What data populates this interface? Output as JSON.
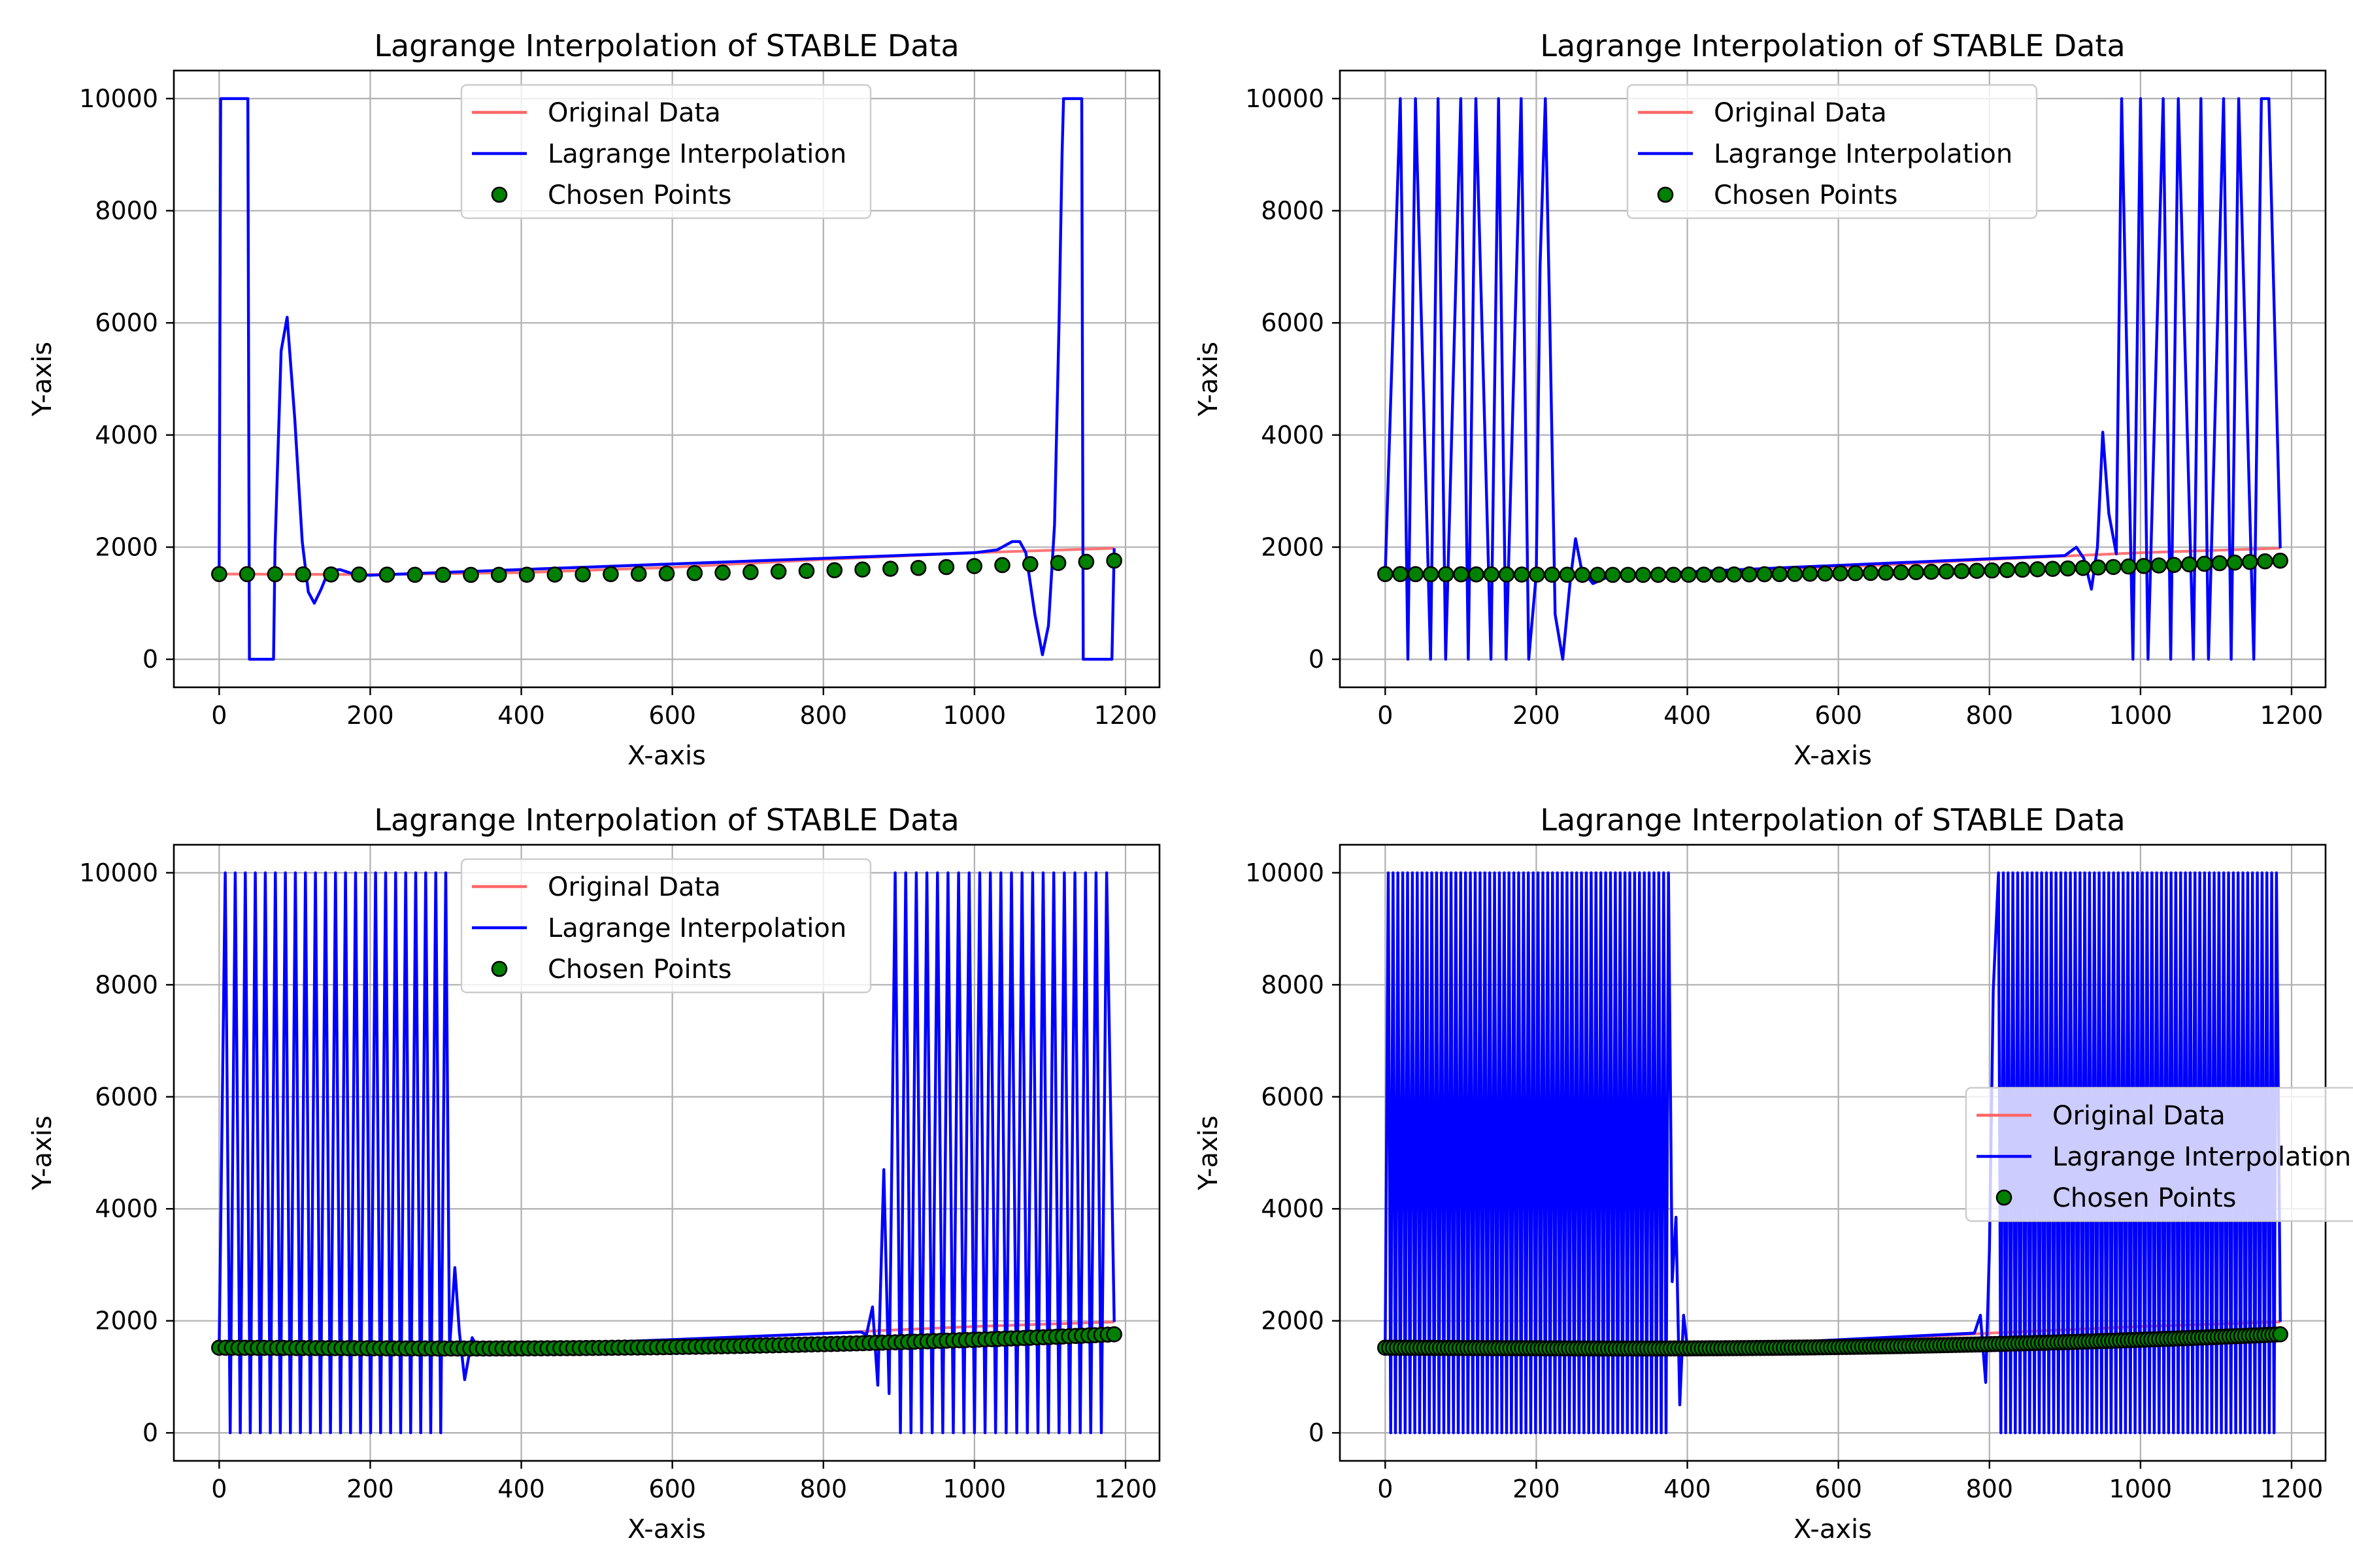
{
  "chart_data": [
    {
      "type": "line",
      "title": "Lagrange Interpolation of STABLE Data",
      "xlabel": "X-axis",
      "ylabel": "Y-axis",
      "xlim": [
        -60,
        1245
      ],
      "ylim": [
        -500,
        10500
      ],
      "xticks": [
        0,
        200,
        400,
        600,
        800,
        1000,
        1200
      ],
      "yticks": [
        0,
        2000,
        4000,
        6000,
        8000,
        10000
      ],
      "grid": true,
      "legend_position": "upper-center",
      "points_count": 33,
      "series": [
        {
          "name": "Original Data",
          "color": "#ff6666",
          "x": [
            0,
            200,
            400,
            600,
            800,
            1000,
            1185
          ],
          "y": [
            1520,
            1510,
            1545,
            1640,
            1780,
            1900,
            1980
          ]
        },
        {
          "name": "Lagrange Interpolation",
          "color": "#0000ff",
          "x": [
            0,
            2,
            4,
            36,
            38,
            40,
            70,
            72,
            74,
            82,
            90,
            100,
            110,
            118,
            126,
            135,
            145,
            160,
            180,
            200,
            1000,
            1030,
            1050,
            1060,
            1068,
            1080,
            1090,
            1098,
            1106,
            1112,
            1116,
            1118,
            1120,
            1140,
            1142,
            1144,
            1180,
            1182,
            1185
          ],
          "y": [
            1520,
            10000,
            10000,
            10000,
            10000,
            0,
            0,
            0,
            2000,
            5500,
            6100,
            4300,
            2100,
            1200,
            1000,
            1250,
            1580,
            1600,
            1510,
            1500,
            1900,
            1950,
            2100,
            2100,
            1900,
            800,
            80,
            600,
            2400,
            6000,
            9000,
            10000,
            10000,
            10000,
            10000,
            0,
            0,
            0,
            1980
          ]
        },
        {
          "name": "Chosen Points",
          "color": "#008000",
          "type": "scatter"
        }
      ]
    },
    {
      "type": "line",
      "title": "Lagrange Interpolation of STABLE Data",
      "xlabel": "X-axis",
      "ylabel": "Y-axis",
      "xlim": [
        -60,
        1245
      ],
      "ylim": [
        -500,
        10500
      ],
      "xticks": [
        0,
        200,
        400,
        600,
        800,
        1000,
        1200
      ],
      "yticks": [
        0,
        2000,
        4000,
        6000,
        8000,
        10000
      ],
      "grid": true,
      "legend_position": "upper-center",
      "points_count": 60,
      "series": [
        {
          "name": "Original Data",
          "color": "#ff6666",
          "x": [
            0,
            200,
            400,
            600,
            800,
            1000,
            1185
          ],
          "y": [
            1520,
            1510,
            1545,
            1640,
            1780,
            1900,
            1980
          ]
        },
        {
          "name": "Lagrange Interpolation",
          "color": "#0000ff",
          "x": [
            0,
            20,
            30,
            40,
            60,
            70,
            80,
            100,
            110,
            120,
            140,
            150,
            160,
            180,
            190,
            200,
            205,
            212,
            218,
            225,
            235,
            245,
            252,
            260,
            275,
            300,
            900,
            915,
            925,
            935,
            943,
            950,
            958,
            968,
            975,
            990,
            1000,
            1010,
            1030,
            1040,
            1050,
            1070,
            1080,
            1090,
            1110,
            1120,
            1130,
            1150,
            1160,
            1170,
            1185
          ],
          "y": [
            1520,
            10000,
            0,
            10000,
            0,
            10000,
            0,
            10000,
            0,
            10000,
            0,
            10000,
            0,
            10000,
            0,
            1520,
            7000,
            10000,
            6000,
            800,
            0,
            1400,
            2150,
            1600,
            1350,
            1500,
            1850,
            2000,
            1800,
            1250,
            2000,
            4050,
            2600,
            1880,
            10000,
            0,
            10000,
            0,
            10000,
            0,
            10000,
            0,
            10000,
            0,
            10000,
            0,
            10000,
            0,
            10000,
            10000,
            1980
          ]
        },
        {
          "name": "Chosen Points",
          "color": "#008000",
          "type": "scatter"
        }
      ]
    },
    {
      "type": "line",
      "title": "Lagrange Interpolation of STABLE Data",
      "xlabel": "X-axis",
      "ylabel": "Y-axis",
      "xlim": [
        -60,
        1245
      ],
      "ylim": [
        -500,
        10500
      ],
      "xticks": [
        0,
        200,
        400,
        600,
        800,
        1000,
        1200
      ],
      "yticks": [
        0,
        2000,
        4000,
        6000,
        8000,
        10000
      ],
      "grid": true,
      "legend_position": "upper-center",
      "points_count": 140,
      "series": [
        {
          "name": "Original Data",
          "color": "#ff6666",
          "x": [
            0,
            200,
            400,
            600,
            800,
            1000,
            1185
          ],
          "y": [
            1520,
            1510,
            1545,
            1640,
            1780,
            1900,
            1980
          ]
        },
        {
          "name": "Lagrange Interpolation",
          "color": "#0000ff",
          "x": [
            0,
            8,
            300,
            305,
            312,
            318,
            325,
            335,
            345,
            350,
            850,
            857,
            865,
            872,
            880,
            887,
            895,
            1175,
            1185
          ],
          "y": [
            1520,
            10000,
            0,
            1500,
            2950,
            1800,
            950,
            1700,
            1450,
            1530,
            1800,
            1750,
            2250,
            850,
            4700,
            700,
            10000,
            10000,
            1980
          ]
        },
        {
          "name": "Chosen Points",
          "color": "#008000",
          "type": "scatter"
        }
      ]
    },
    {
      "type": "line",
      "title": "Lagrange Interpolation of STABLE Data",
      "xlabel": "X-axis",
      "ylabel": "Y-axis",
      "xlim": [
        -60,
        1245
      ],
      "ylim": [
        -500,
        10500
      ],
      "xticks": [
        0,
        200,
        400,
        600,
        800,
        1000,
        1200
      ],
      "yticks": [
        0,
        2000,
        4000,
        6000,
        8000,
        10000
      ],
      "grid": true,
      "legend_position": "center-right",
      "points_count": 230,
      "series": [
        {
          "name": "Original Data",
          "color": "#ff6666",
          "x": [
            0,
            200,
            400,
            600,
            800,
            1000,
            1185
          ],
          "y": [
            1520,
            1510,
            1545,
            1640,
            1780,
            1900,
            1980
          ]
        },
        {
          "name": "Lagrange Interpolation",
          "color": "#0000ff",
          "x": [
            0,
            4,
            375,
            380,
            385,
            390,
            395,
            400,
            780,
            788,
            795,
            800,
            805,
            812,
            1180,
            1185
          ],
          "y": [
            1520,
            10000,
            0,
            2700,
            3850,
            500,
            2100,
            1530,
            1780,
            2100,
            900,
            3300,
            7900,
            10000,
            0,
            1980
          ]
        },
        {
          "name": "Chosen Points",
          "color": "#008000",
          "type": "scatter"
        }
      ]
    }
  ]
}
